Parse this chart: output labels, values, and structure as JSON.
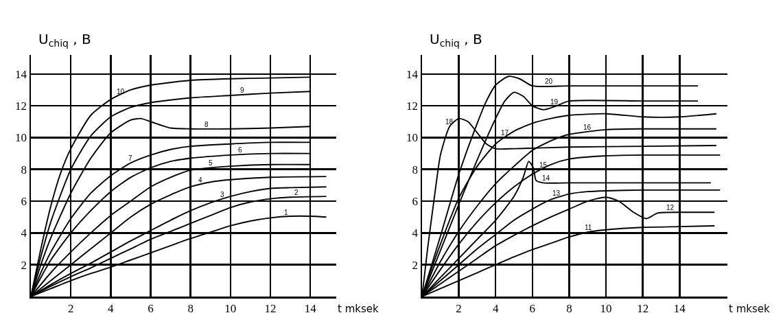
{
  "chart_data": [
    {
      "type": "line",
      "ylabel": "U$_{chiq}$ , B",
      "xlabel": "t mksek",
      "xlim": [
        0,
        15.3
      ],
      "ylim": [
        0,
        15.2
      ],
      "xticks": [
        2,
        4,
        6,
        8,
        10,
        12,
        14
      ],
      "yticks": [
        2,
        4,
        6,
        8,
        10,
        12,
        14
      ],
      "grid": true,
      "marker": "none",
      "line_style": "solid",
      "series": [
        {
          "color": "#000000",
          "x": [
            0,
            1,
            2,
            3,
            4,
            5,
            6,
            7,
            8,
            9,
            10,
            11,
            12,
            13,
            14,
            14.8
          ],
          "values": [
            0,
            0.5,
            1,
            1.45,
            1.85,
            2.3,
            2.75,
            3.2,
            3.65,
            4.05,
            4.45,
            4.75,
            4.95,
            5.05,
            5.05,
            5.0
          ]
        },
        {
          "color": "#000000",
          "x": [
            0,
            1,
            2,
            3,
            4,
            5,
            6,
            7,
            8,
            9,
            10,
            11,
            12,
            13,
            14.8
          ],
          "values": [
            0,
            0.65,
            1.25,
            1.8,
            2.4,
            3.0,
            3.6,
            4.1,
            4.6,
            5.1,
            5.6,
            5.95,
            6.15,
            6.25,
            6.3
          ]
        },
        {
          "color": "#000000",
          "x": [
            0,
            1,
            2,
            3,
            4,
            5,
            6,
            7,
            8,
            9,
            10,
            11,
            12,
            13,
            14.8
          ],
          "values": [
            0,
            0.75,
            1.45,
            2.1,
            2.8,
            3.5,
            4.15,
            4.8,
            5.4,
            5.9,
            6.3,
            6.6,
            6.8,
            6.85,
            6.9
          ]
        },
        {
          "color": "#000000",
          "x": [
            0,
            1,
            2,
            3,
            4,
            5,
            6,
            7,
            8,
            9,
            10,
            12,
            14.8
          ],
          "values": [
            0,
            1.0,
            2.0,
            3.0,
            4.0,
            5.0,
            5.8,
            6.4,
            6.9,
            7.2,
            7.35,
            7.5,
            7.55
          ]
        },
        {
          "color": "#000000",
          "x": [
            0,
            1,
            2,
            3,
            4,
            5,
            6,
            7,
            8,
            9,
            10,
            12,
            14
          ],
          "values": [
            0,
            1.5,
            2.8,
            4.0,
            5.1,
            6.0,
            6.9,
            7.5,
            7.95,
            8.1,
            8.2,
            8.3,
            8.3
          ]
        },
        {
          "color": "#000000",
          "x": [
            0,
            0.5,
            1,
            2,
            3,
            4,
            5,
            6,
            7,
            8,
            10,
            12,
            14
          ],
          "values": [
            0,
            1.2,
            2.3,
            4.0,
            5.4,
            6.6,
            7.5,
            8.1,
            8.5,
            8.7,
            8.9,
            9.0,
            9.0
          ]
        },
        {
          "color": "#000000",
          "x": [
            0,
            0.5,
            1,
            2,
            3,
            4,
            5,
            6,
            7,
            8,
            10,
            12,
            14
          ],
          "values": [
            0,
            1.5,
            2.8,
            4.9,
            6.5,
            7.6,
            8.4,
            8.9,
            9.25,
            9.45,
            9.6,
            9.7,
            9.7
          ]
        },
        {
          "color": "#000000",
          "x": [
            0,
            0.5,
            1,
            2,
            3,
            4,
            5,
            5.5,
            6,
            7,
            8,
            10,
            12,
            14
          ],
          "values": [
            0,
            2,
            3.7,
            6.5,
            8.7,
            10.3,
            11.1,
            11.2,
            11.0,
            10.6,
            10.55,
            10.55,
            10.6,
            10.7
          ]
        },
        {
          "color": "#000000",
          "x": [
            0,
            0.5,
            1,
            2,
            3,
            4,
            5,
            6,
            8,
            10,
            12,
            14
          ],
          "values": [
            0,
            2.5,
            4.7,
            8.0,
            10.1,
            11.3,
            11.9,
            12.2,
            12.5,
            12.65,
            12.8,
            12.9
          ]
        },
        {
          "color": "#000000",
          "x": [
            0,
            0.5,
            1,
            1.5,
            2,
            3,
            4,
            5,
            6,
            8,
            10,
            12,
            14
          ],
          "values": [
            0,
            3,
            5.7,
            7.8,
            9.3,
            11.4,
            12.4,
            13.0,
            13.3,
            13.6,
            13.7,
            13.75,
            13.8
          ]
        }
      ],
      "annotations": [
        {
          "text": "1",
          "x": 12.8,
          "y": 5.03
        },
        {
          "text": "2",
          "x": 13.3,
          "y": 6.26
        },
        {
          "text": "3",
          "x": 9.6,
          "y": 6.14
        },
        {
          "text": "4",
          "x": 8.5,
          "y": 7.05
        },
        {
          "text": "5",
          "x": 9,
          "y": 8.1
        },
        {
          "text": "6",
          "x": 10.5,
          "y": 8.95
        },
        {
          "text": "7",
          "x": 5,
          "y": 8.4
        },
        {
          "text": "8",
          "x": 8.8,
          "y": 10.55
        },
        {
          "text": "9",
          "x": 10.6,
          "y": 12.7
        },
        {
          "text": "10",
          "x": 4.5,
          "y": 12.6
        }
      ]
    },
    {
      "type": "line",
      "ylabel": "U$_{chiq}$ , B",
      "xlabel": "t mksek",
      "xlim": [
        0,
        16.6
      ],
      "ylim": [
        0,
        15.2
      ],
      "xticks": [
        2,
        4,
        6,
        8,
        10,
        12,
        14
      ],
      "yticks": [
        2,
        4,
        6,
        8,
        10,
        12,
        14
      ],
      "grid": true,
      "marker": "none",
      "line_style": "solid",
      "series": [
        {
          "color": "#000000",
          "x": [
            0,
            1,
            2,
            3,
            4,
            5,
            6,
            7,
            8,
            9,
            10,
            12,
            14,
            15.9
          ],
          "values": [
            0,
            0.5,
            1.0,
            1.5,
            2.0,
            2.5,
            2.95,
            3.35,
            3.75,
            4.05,
            4.2,
            4.35,
            4.4,
            4.45
          ]
        },
        {
          "color": "#000000",
          "x": [
            0,
            1,
            2,
            3,
            4,
            5,
            6,
            7,
            8,
            9,
            10,
            10.7,
            11.5,
            12.2,
            12.8,
            14,
            15.9
          ],
          "values": [
            0,
            0.8,
            1.6,
            2.4,
            3.2,
            3.85,
            4.45,
            5.0,
            5.5,
            6.0,
            6.25,
            6.0,
            5.3,
            4.9,
            5.25,
            5.3,
            5.3
          ]
        },
        {
          "color": "#000000",
          "x": [
            0,
            1,
            2,
            3,
            4,
            5,
            6,
            7,
            8,
            9,
            10,
            12,
            16.2
          ],
          "values": [
            0,
            1.0,
            2.0,
            3.0,
            3.9,
            4.8,
            5.5,
            6.1,
            6.45,
            6.6,
            6.65,
            6.7,
            6.7
          ]
        },
        {
          "color": "#000000",
          "x": [
            0,
            1,
            2,
            3,
            4,
            5,
            5.5,
            5.8,
            6.05,
            6.2,
            6.6,
            8,
            12,
            15.7
          ],
          "values": [
            0,
            1.2,
            2.4,
            3.6,
            4.8,
            6.3,
            7.5,
            8.5,
            8.1,
            7.3,
            7.15,
            7.15,
            7.15,
            7.15
          ]
        },
        {
          "color": "#000000",
          "x": [
            0,
            1,
            2,
            3,
            4,
            5,
            6,
            7,
            8,
            10,
            12,
            16.2
          ],
          "values": [
            0,
            1.7,
            3.3,
            4.7,
            5.9,
            6.9,
            7.7,
            8.3,
            8.65,
            8.85,
            8.9,
            8.9
          ]
        },
        {
          "color": "#000000",
          "x": [
            0,
            1,
            2,
            3,
            4,
            5,
            6,
            7,
            8,
            10,
            12,
            16
          ],
          "values": [
            0,
            2.2,
            4.1,
            5.7,
            7.1,
            8.2,
            9.2,
            9.8,
            10.2,
            10.5,
            10.55,
            10.55
          ]
        },
        {
          "color": "#000000",
          "x": [
            0,
            0.5,
            1,
            2,
            3,
            4,
            5,
            6,
            7,
            8,
            10,
            12,
            14,
            16
          ],
          "values": [
            0,
            1.7,
            3.3,
            6.2,
            8.2,
            9.6,
            10.4,
            10.9,
            11.2,
            11.4,
            11.5,
            11.3,
            11.3,
            11.5
          ]
        },
        {
          "color": "#000000",
          "x": [
            0,
            0.3,
            0.7,
            1,
            1.5,
            2,
            2.5,
            3,
            3.5,
            4,
            5,
            8,
            12,
            16
          ],
          "values": [
            0,
            3,
            6.5,
            8.9,
            10.7,
            11.2,
            11.0,
            10.3,
            9.6,
            9.3,
            9.3,
            9.4,
            9.45,
            9.5
          ]
        },
        {
          "color": "#000000",
          "x": [
            0,
            1,
            2,
            3,
            4,
            4.5,
            5,
            5.5,
            6,
            6.6,
            7.2,
            8,
            12,
            15
          ],
          "values": [
            0,
            2.9,
            5.8,
            8.6,
            11.2,
            12.3,
            12.85,
            12.6,
            12.0,
            11.75,
            11.95,
            12.3,
            12.3,
            12.3
          ]
        },
        {
          "color": "#000000",
          "x": [
            0,
            1,
            2,
            3,
            3.5,
            4,
            4.7,
            5.3,
            6,
            8,
            12,
            15
          ],
          "values": [
            0,
            3.8,
            7.7,
            10.9,
            12.3,
            13.3,
            13.85,
            13.7,
            13.25,
            13.25,
            13.25,
            13.25
          ]
        }
      ],
      "annotations": [
        {
          "text": "11",
          "x": 9.05,
          "y": 4.06
        },
        {
          "text": "12",
          "x": 13.5,
          "y": 5.3
        },
        {
          "text": "13",
          "x": 7.3,
          "y": 6.2
        },
        {
          "text": "14",
          "x": 6.75,
          "y": 7.15
        },
        {
          "text": "15",
          "x": 6.6,
          "y": 8.0
        },
        {
          "text": "16",
          "x": 9,
          "y": 10.35
        },
        {
          "text": "17",
          "x": 4.5,
          "y": 10.0
        },
        {
          "text": "18",
          "x": 1.5,
          "y": 10.7
        },
        {
          "text": "19",
          "x": 7.2,
          "y": 11.95
        },
        {
          "text": "20",
          "x": 6.9,
          "y": 13.25
        }
      ]
    }
  ]
}
